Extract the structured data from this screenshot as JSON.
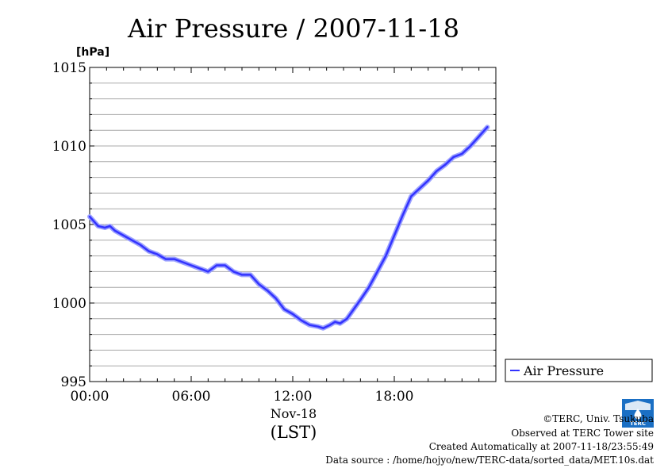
{
  "chart_data": {
    "type": "line",
    "title": "Air Pressure / 2007-11-18",
    "ylabel": "[hPa]",
    "xlabel_date": "Nov-18",
    "xlabel_tz": "(LST)",
    "ylim": [
      995,
      1015
    ],
    "xlim": [
      0,
      24
    ],
    "yticks": [
      995,
      1000,
      1005,
      1010,
      1015
    ],
    "xticks": [
      {
        "value": 0,
        "label": "00:00"
      },
      {
        "value": 6,
        "label": "06:00"
      },
      {
        "value": 12,
        "label": "12:00"
      },
      {
        "value": 18,
        "label": "18:00"
      }
    ],
    "grid": true,
    "legend_position": "right",
    "series": [
      {
        "name": "Air Pressure",
        "color": "#3333ff",
        "x": [
          0,
          0.5,
          0.9,
          1.2,
          1.5,
          2,
          2.5,
          3,
          3.5,
          4,
          4.5,
          5,
          5.5,
          6,
          6.5,
          7,
          7.5,
          8,
          8.5,
          9,
          9.5,
          10,
          10.5,
          11,
          11.5,
          12,
          12.5,
          13,
          13.5,
          13.8,
          14.2,
          14.5,
          14.8,
          15.2,
          15.6,
          16,
          16.5,
          17,
          17.5,
          18,
          18.5,
          19,
          19.5,
          20,
          20.5,
          21,
          21.5,
          22,
          22.5,
          23,
          23.5
        ],
        "y": [
          1005.5,
          1004.9,
          1004.8,
          1004.9,
          1004.6,
          1004.3,
          1004.0,
          1003.7,
          1003.3,
          1003.1,
          1002.8,
          1002.8,
          1002.6,
          1002.4,
          1002.2,
          1002.0,
          1002.4,
          1002.4,
          1002.0,
          1001.8,
          1001.8,
          1001.2,
          1000.8,
          1000.3,
          999.6,
          999.3,
          998.9,
          998.6,
          998.5,
          998.4,
          998.6,
          998.8,
          998.7,
          999.0,
          999.6,
          1000.2,
          1001.0,
          1002.0,
          1003.0,
          1004.3,
          1005.6,
          1006.8,
          1007.3,
          1007.8,
          1008.4,
          1008.8,
          1009.3,
          1009.5,
          1010.0,
          1010.6,
          1011.2
        ]
      }
    ]
  },
  "footer": {
    "copyright": "©TERC, Univ. Tsukuba",
    "observed": "Observed at TERC Tower site",
    "created": "Created Automatically at 2007-11-18/23:55:49",
    "source": "Data source : /home/hojyo/new/TERC-data/sorted_data/MET.10s.dat",
    "logo_text": "TERC"
  }
}
